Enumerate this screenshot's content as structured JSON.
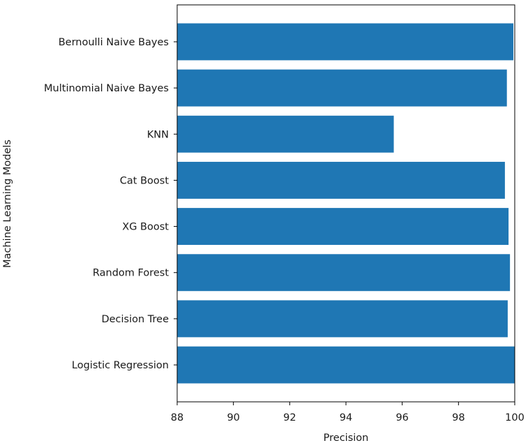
{
  "chart_data": {
    "type": "bar",
    "orientation": "horizontal",
    "title": "",
    "xlabel": "Precision",
    "ylabel": "Machine Learning Models",
    "xlim": [
      88,
      100
    ],
    "xticks": [
      88,
      90,
      92,
      94,
      96,
      98,
      100
    ],
    "categories": [
      "Logistic Regression",
      "Decision Tree",
      "Random Forest",
      "XG Boost",
      "Cat Boost",
      "KNN",
      "Multinomial Naive Bayes",
      "Bernoulli Naive Bayes"
    ],
    "values": [
      100.0,
      99.75,
      99.83,
      99.78,
      99.65,
      95.7,
      99.72,
      99.95
    ],
    "bar_color": "#1f77b4",
    "grid": false,
    "legend": "none"
  }
}
